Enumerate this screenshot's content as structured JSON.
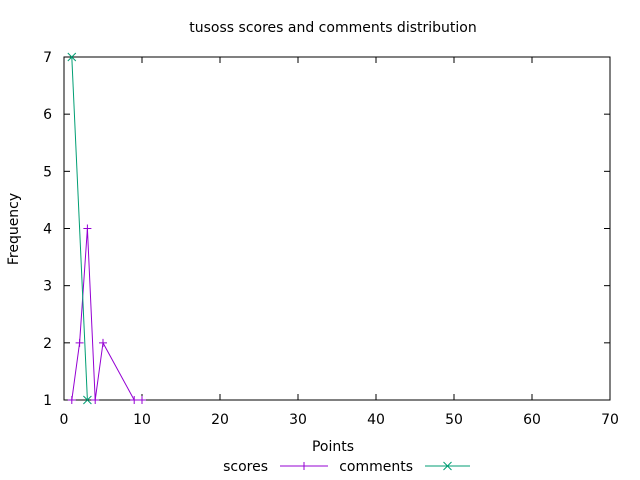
{
  "chart_data": {
    "type": "line",
    "title": "tusoss scores and comments distribution",
    "xlabel": "Points",
    "ylabel": "Frequency",
    "xlim": [
      0,
      70
    ],
    "ylim": [
      1,
      7
    ],
    "xticks": [
      0,
      10,
      20,
      30,
      40,
      50,
      60,
      70
    ],
    "yticks": [
      1,
      2,
      3,
      4,
      5,
      6,
      7
    ],
    "grid": false,
    "legend_position": "bottom-center",
    "series": [
      {
        "name": "scores",
        "color": "#9400d3",
        "marker": "plus",
        "x": [
          1,
          2,
          3,
          4,
          5,
          9,
          10
        ],
        "y": [
          1,
          2,
          4,
          1,
          2,
          1,
          1
        ]
      },
      {
        "name": "comments",
        "color": "#009e73",
        "marker": "cross",
        "x": [
          1,
          3
        ],
        "y": [
          7,
          1
        ]
      }
    ]
  }
}
